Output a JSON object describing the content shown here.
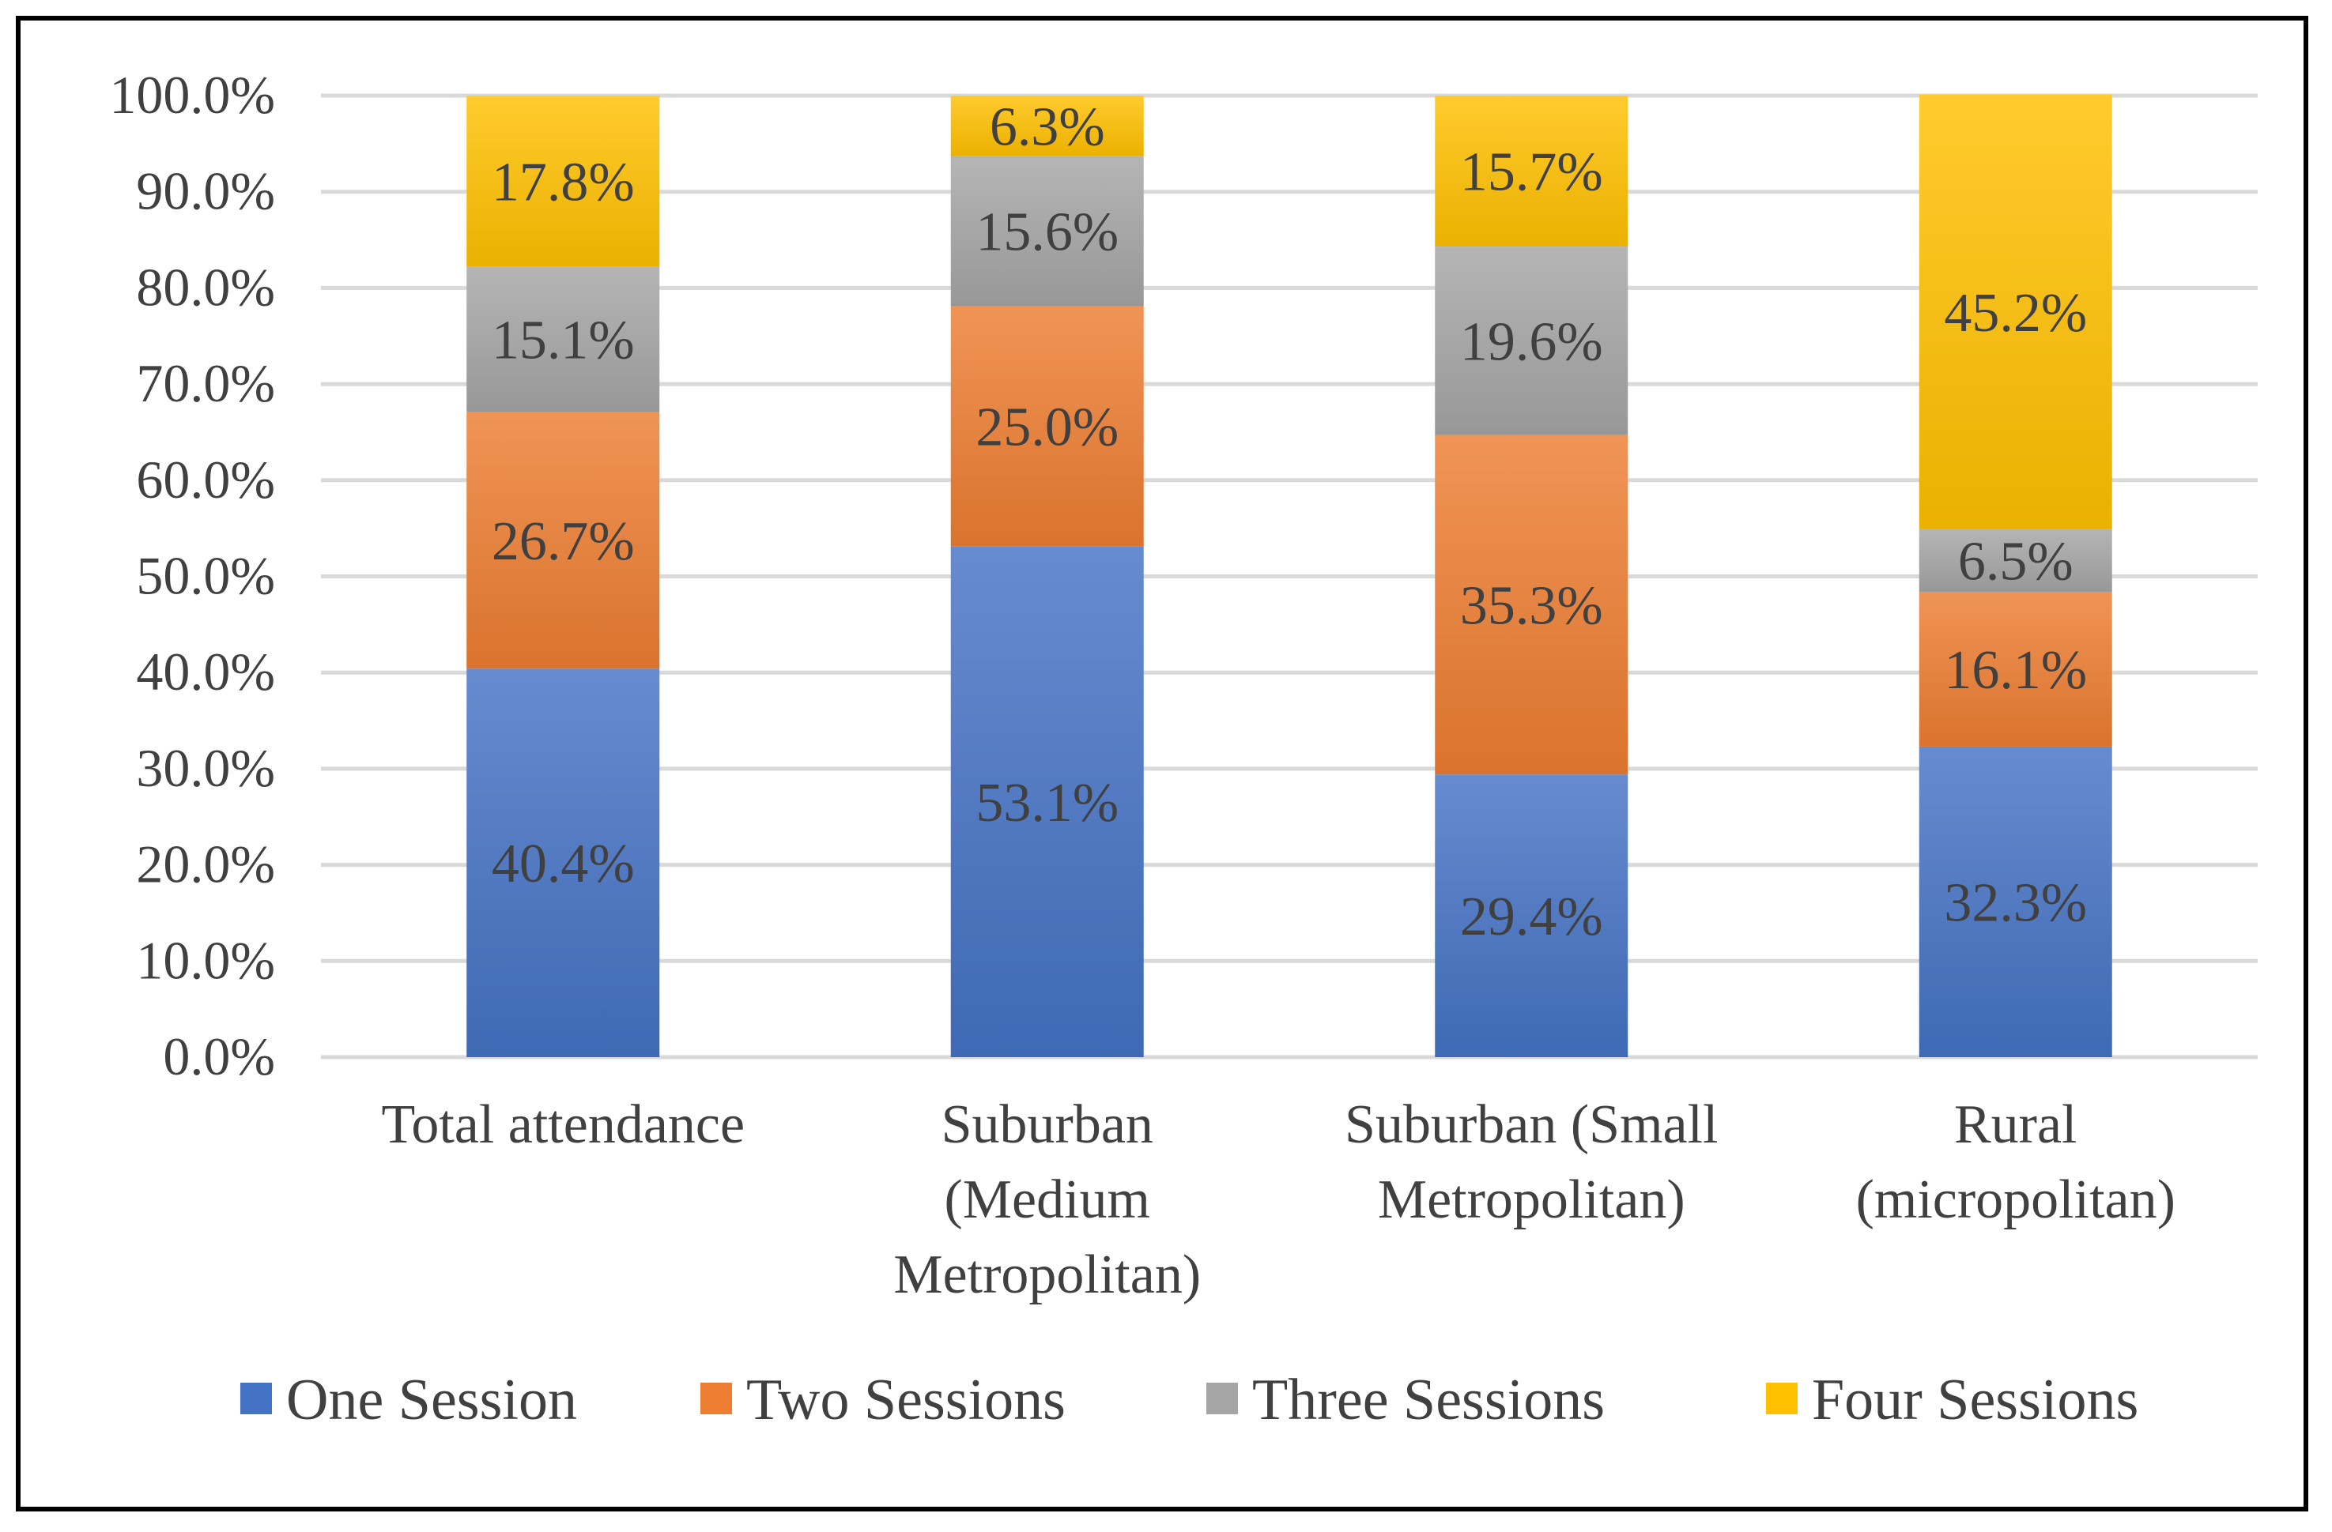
{
  "chart_data": {
    "type": "bar",
    "stacked": "percent",
    "title": "",
    "xlabel": "",
    "ylabel": "",
    "ylim": [
      0,
      100
    ],
    "y_ticks": [
      "0.0%",
      "10.0%",
      "20.0%",
      "30.0%",
      "40.0%",
      "50.0%",
      "60.0%",
      "70.0%",
      "80.0%",
      "90.0%",
      "100.0%"
    ],
    "grid": true,
    "legend_position": "bottom",
    "categories": [
      [
        "Total attendance"
      ],
      [
        "Suburban",
        "(Medium",
        "Metropolitan)"
      ],
      [
        "Suburban (Small",
        "Metropolitan)"
      ],
      [
        "Rural",
        "(micropolitan)"
      ]
    ],
    "series": [
      {
        "name": "One Session",
        "color": "#4472C4",
        "values": [
          40.4,
          53.1,
          29.4,
          32.3
        ],
        "labels": [
          "40.4%",
          "53.1%",
          "29.4%",
          "32.3%"
        ]
      },
      {
        "name": "Two Sessions",
        "color": "#ED7D31",
        "values": [
          26.7,
          25.0,
          35.3,
          16.1
        ],
        "labels": [
          "26.7%",
          "25.0%",
          "35.3%",
          "16.1%"
        ]
      },
      {
        "name": "Three Sessions",
        "color": "#A5A5A5",
        "values": [
          15.1,
          15.6,
          19.6,
          6.5
        ],
        "labels": [
          "15.1%",
          "15.6%",
          "19.6%",
          "6.5%"
        ]
      },
      {
        "name": "Four Sessions",
        "color": "#FFC000",
        "values": [
          17.8,
          6.3,
          15.7,
          45.2
        ],
        "labels": [
          "17.8%",
          "6.3%",
          "15.7%",
          "45.2%"
        ]
      }
    ]
  }
}
